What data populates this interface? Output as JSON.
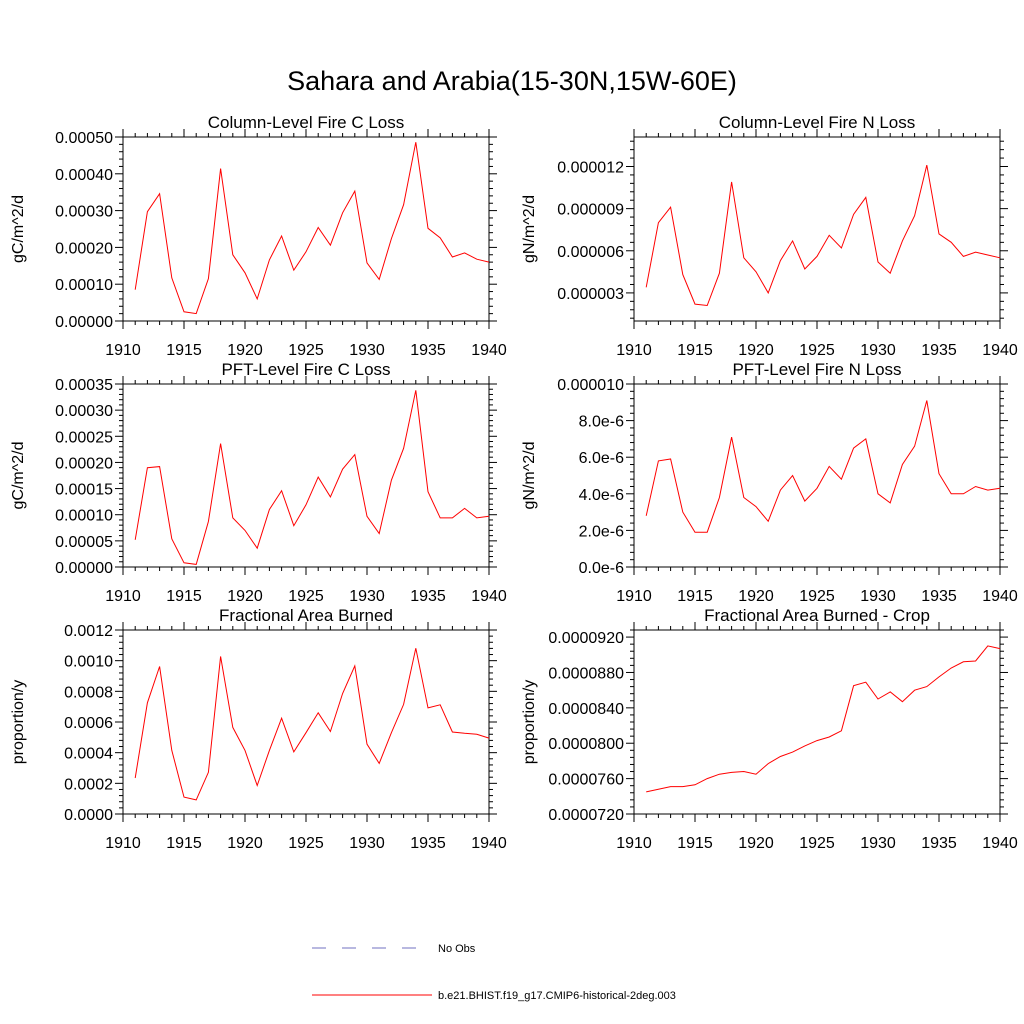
{
  "title": "Sahara and Arabia(15-30N,15W-60E)",
  "legend": [
    {
      "label": "No Obs",
      "color": "#7070c0",
      "dash": "dashed"
    },
    {
      "label": "b.e21.BHIST.f19_g17.CMIP6-historical-2deg.003",
      "color": "#ff0000",
      "dash": "solid"
    }
  ],
  "chart_data": [
    {
      "type": "line",
      "title": "Column-Level Fire C Loss",
      "ylabel": "gC/m^2/d",
      "xlim": [
        1910,
        1940
      ],
      "ylim": [
        0,
        0.0005
      ],
      "xticks": [
        1910,
        1915,
        1920,
        1925,
        1930,
        1935,
        1940
      ],
      "yticks": [
        0,
        0.0001,
        0.0002,
        0.0003,
        0.0004,
        0.0005
      ],
      "ytick_labels": [
        "0.00000",
        "0.00010",
        "0.00020",
        "0.00030",
        "0.00040",
        "0.00050"
      ],
      "x": [
        1911,
        1912,
        1913,
        1914,
        1915,
        1916,
        1917,
        1918,
        1919,
        1920,
        1921,
        1922,
        1923,
        1924,
        1925,
        1926,
        1927,
        1928,
        1929,
        1930,
        1931,
        1932,
        1933,
        1934,
        1935,
        1936,
        1937,
        1938,
        1939,
        1940
      ],
      "series": [
        {
          "name": "b.e21.BHIST.f19_g17.CMIP6-historical-2deg.003",
          "values": [
            8.5e-05,
            0.000297,
            0.000346,
            0.000117,
            2.5e-05,
            2e-05,
            0.000115,
            0.000414,
            0.00018,
            0.000131,
            6e-05,
            0.000166,
            0.000231,
            0.000138,
            0.000188,
            0.000254,
            0.000206,
            0.000294,
            0.000353,
            0.000158,
            0.000113,
            0.000224,
            0.000316,
            0.000486,
            0.000252,
            0.000226,
            0.000174,
            0.000185,
            0.000168,
            0.00016
          ]
        }
      ]
    },
    {
      "type": "line",
      "title": "Column-Level Fire N Loss",
      "ylabel": "gN/m^2/d",
      "xlim": [
        1910,
        1940
      ],
      "ylim": [
        1e-06,
        1.41e-05
      ],
      "xticks": [
        1910,
        1915,
        1920,
        1925,
        1930,
        1935,
        1940
      ],
      "yticks": [
        3e-06,
        6e-06,
        9e-06,
        1.2e-05
      ],
      "ytick_labels": [
        "0.000003",
        "0.000006",
        "0.000009",
        "0.000012"
      ],
      "x": [
        1911,
        1912,
        1913,
        1914,
        1915,
        1916,
        1917,
        1918,
        1919,
        1920,
        1921,
        1922,
        1923,
        1924,
        1925,
        1926,
        1927,
        1928,
        1929,
        1930,
        1931,
        1932,
        1933,
        1934,
        1935,
        1936,
        1937,
        1938,
        1939,
        1940
      ],
      "series": [
        {
          "name": "b.e21.BHIST.f19_g17.CMIP6-historical-2deg.003",
          "values": [
            3.4e-06,
            8e-06,
            9.1e-06,
            4.3e-06,
            2.2e-06,
            2.1e-06,
            4.4e-06,
            1.09e-05,
            5.5e-06,
            4.5e-06,
            3e-06,
            5.3e-06,
            6.7e-06,
            4.7e-06,
            5.6e-06,
            7.1e-06,
            6.2e-06,
            8.6e-06,
            9.8e-06,
            5.2e-06,
            4.4e-06,
            6.7e-06,
            8.5e-06,
            1.21e-05,
            7.2e-06,
            6.6e-06,
            5.6e-06,
            5.9e-06,
            5.7e-06,
            5.5e-06
          ]
        }
      ]
    },
    {
      "type": "line",
      "title": "PFT-Level Fire C Loss",
      "ylabel": "gC/m^2/d",
      "xlim": [
        1910,
        1940
      ],
      "ylim": [
        0,
        0.00035
      ],
      "xticks": [
        1910,
        1915,
        1920,
        1925,
        1930,
        1935,
        1940
      ],
      "yticks": [
        0,
        5e-05,
        0.0001,
        0.00015,
        0.0002,
        0.00025,
        0.0003,
        0.00035
      ],
      "ytick_labels": [
        "0.00000",
        "0.00005",
        "0.00010",
        "0.00015",
        "0.00020",
        "0.00025",
        "0.00030",
        "0.00035"
      ],
      "x": [
        1911,
        1912,
        1913,
        1914,
        1915,
        1916,
        1917,
        1918,
        1919,
        1920,
        1921,
        1922,
        1923,
        1924,
        1925,
        1926,
        1927,
        1928,
        1929,
        1930,
        1931,
        1932,
        1933,
        1934,
        1935,
        1936,
        1937,
        1938,
        1939,
        1940
      ],
      "series": [
        {
          "name": "b.e21.BHIST.f19_g17.CMIP6-historical-2deg.003",
          "values": [
            5.2e-05,
            0.00019,
            0.000192,
            5.4e-05,
            8e-06,
            5e-06,
            8.7e-05,
            0.000236,
            9.4e-05,
            7e-05,
            3.6e-05,
            0.00011,
            0.000146,
            7.9e-05,
            0.000119,
            0.000172,
            0.000134,
            0.000187,
            0.000215,
            9.7e-05,
            6.4e-05,
            0.000166,
            0.000227,
            0.000338,
            0.000144,
            9.4e-05,
            9.4e-05,
            0.000112,
            9.4e-05,
            9.7e-05
          ]
        }
      ]
    },
    {
      "type": "line",
      "title": "PFT-Level Fire N Loss",
      "ylabel": "gN/m^2/d",
      "xlim": [
        1910,
        1940
      ],
      "ylim": [
        0,
        1e-05
      ],
      "xticks": [
        1910,
        1915,
        1920,
        1925,
        1930,
        1935,
        1940
      ],
      "yticks": [
        0,
        2e-06,
        4e-06,
        6e-06,
        8e-06,
        1e-05
      ],
      "ytick_labels": [
        "0.0e-6",
        "2.0e-6",
        "4.0e-6",
        "6.0e-6",
        "8.0e-6",
        "0.000010"
      ],
      "x": [
        1911,
        1912,
        1913,
        1914,
        1915,
        1916,
        1917,
        1918,
        1919,
        1920,
        1921,
        1922,
        1923,
        1924,
        1925,
        1926,
        1927,
        1928,
        1929,
        1930,
        1931,
        1932,
        1933,
        1934,
        1935,
        1936,
        1937,
        1938,
        1939,
        1940
      ],
      "series": [
        {
          "name": "b.e21.BHIST.f19_g17.CMIP6-historical-2deg.003",
          "values": [
            2.8e-06,
            5.8e-06,
            5.9e-06,
            3e-06,
            1.9e-06,
            1.9e-06,
            3.8e-06,
            7.1e-06,
            3.8e-06,
            3.3e-06,
            2.5e-06,
            4.2e-06,
            5e-06,
            3.6e-06,
            4.3e-06,
            5.5e-06,
            4.8e-06,
            6.5e-06,
            7e-06,
            4e-06,
            3.5e-06,
            5.6e-06,
            6.6e-06,
            9.1e-06,
            5.1e-06,
            4e-06,
            4e-06,
            4.4e-06,
            4.2e-06,
            4.3e-06
          ]
        }
      ]
    },
    {
      "type": "line",
      "title": "Fractional Area Burned",
      "ylabel": "proportion/y",
      "xlim": [
        1910,
        1940
      ],
      "ylim": [
        0,
        0.0012
      ],
      "xticks": [
        1910,
        1915,
        1920,
        1925,
        1930,
        1935,
        1940
      ],
      "yticks": [
        0,
        0.0002,
        0.0004,
        0.0006,
        0.0008,
        0.001,
        0.0012
      ],
      "ytick_labels": [
        "0.0000",
        "0.0002",
        "0.0004",
        "0.0006",
        "0.0008",
        "0.0010",
        "0.0012"
      ],
      "x": [
        1911,
        1912,
        1913,
        1914,
        1915,
        1916,
        1917,
        1918,
        1919,
        1920,
        1921,
        1922,
        1923,
        1924,
        1925,
        1926,
        1927,
        1928,
        1929,
        1930,
        1931,
        1932,
        1933,
        1934,
        1935,
        1936,
        1937,
        1938,
        1939,
        1940
      ],
      "series": [
        {
          "name": "b.e21.BHIST.f19_g17.CMIP6-historical-2deg.003",
          "values": [
            0.000235,
            0.000725,
            0.000962,
            0.000415,
            0.00011,
            9.2e-05,
            0.000272,
            0.001028,
            0.000565,
            0.000415,
            0.000186,
            0.000415,
            0.000625,
            0.000405,
            0.00053,
            0.00066,
            0.000538,
            0.000786,
            0.000966,
            0.000455,
            0.00033,
            0.00053,
            0.000715,
            0.001081,
            0.000692,
            0.000712,
            0.000535,
            0.000526,
            0.00052,
            0.000495
          ]
        }
      ]
    },
    {
      "type": "line",
      "title": "Fractional Area Burned - Crop",
      "ylabel": "proportion/y",
      "xlim": [
        1910,
        1940
      ],
      "ylim": [
        7.2e-05,
        9.28e-05
      ],
      "xticks": [
        1910,
        1915,
        1920,
        1925,
        1930,
        1935,
        1940
      ],
      "yticks": [
        7.2e-05,
        7.6e-05,
        8e-05,
        8.4e-05,
        8.8e-05,
        9.2e-05
      ],
      "ytick_labels": [
        "0.0000720",
        "0.0000760",
        "0.0000800",
        "0.0000840",
        "0.0000880",
        "0.0000920"
      ],
      "x": [
        1911,
        1912,
        1913,
        1914,
        1915,
        1916,
        1917,
        1918,
        1919,
        1920,
        1921,
        1922,
        1923,
        1924,
        1925,
        1926,
        1927,
        1928,
        1929,
        1930,
        1931,
        1932,
        1933,
        1934,
        1935,
        1936,
        1937,
        1938,
        1939,
        1940
      ],
      "series": [
        {
          "name": "b.e21.BHIST.f19_g17.CMIP6-historical-2deg.003",
          "values": [
            7.45e-05,
            7.48e-05,
            7.51e-05,
            7.51e-05,
            7.53e-05,
            7.6e-05,
            7.65e-05,
            7.67e-05,
            7.68e-05,
            7.65e-05,
            7.77e-05,
            7.85e-05,
            7.9e-05,
            7.97e-05,
            8.03e-05,
            8.07e-05,
            8.14e-05,
            8.65e-05,
            8.69e-05,
            8.5e-05,
            8.58e-05,
            8.47e-05,
            8.6e-05,
            8.64e-05,
            8.75e-05,
            8.85e-05,
            8.92e-05,
            8.93e-05,
            9.1e-05,
            9.07e-05
          ]
        }
      ]
    }
  ]
}
